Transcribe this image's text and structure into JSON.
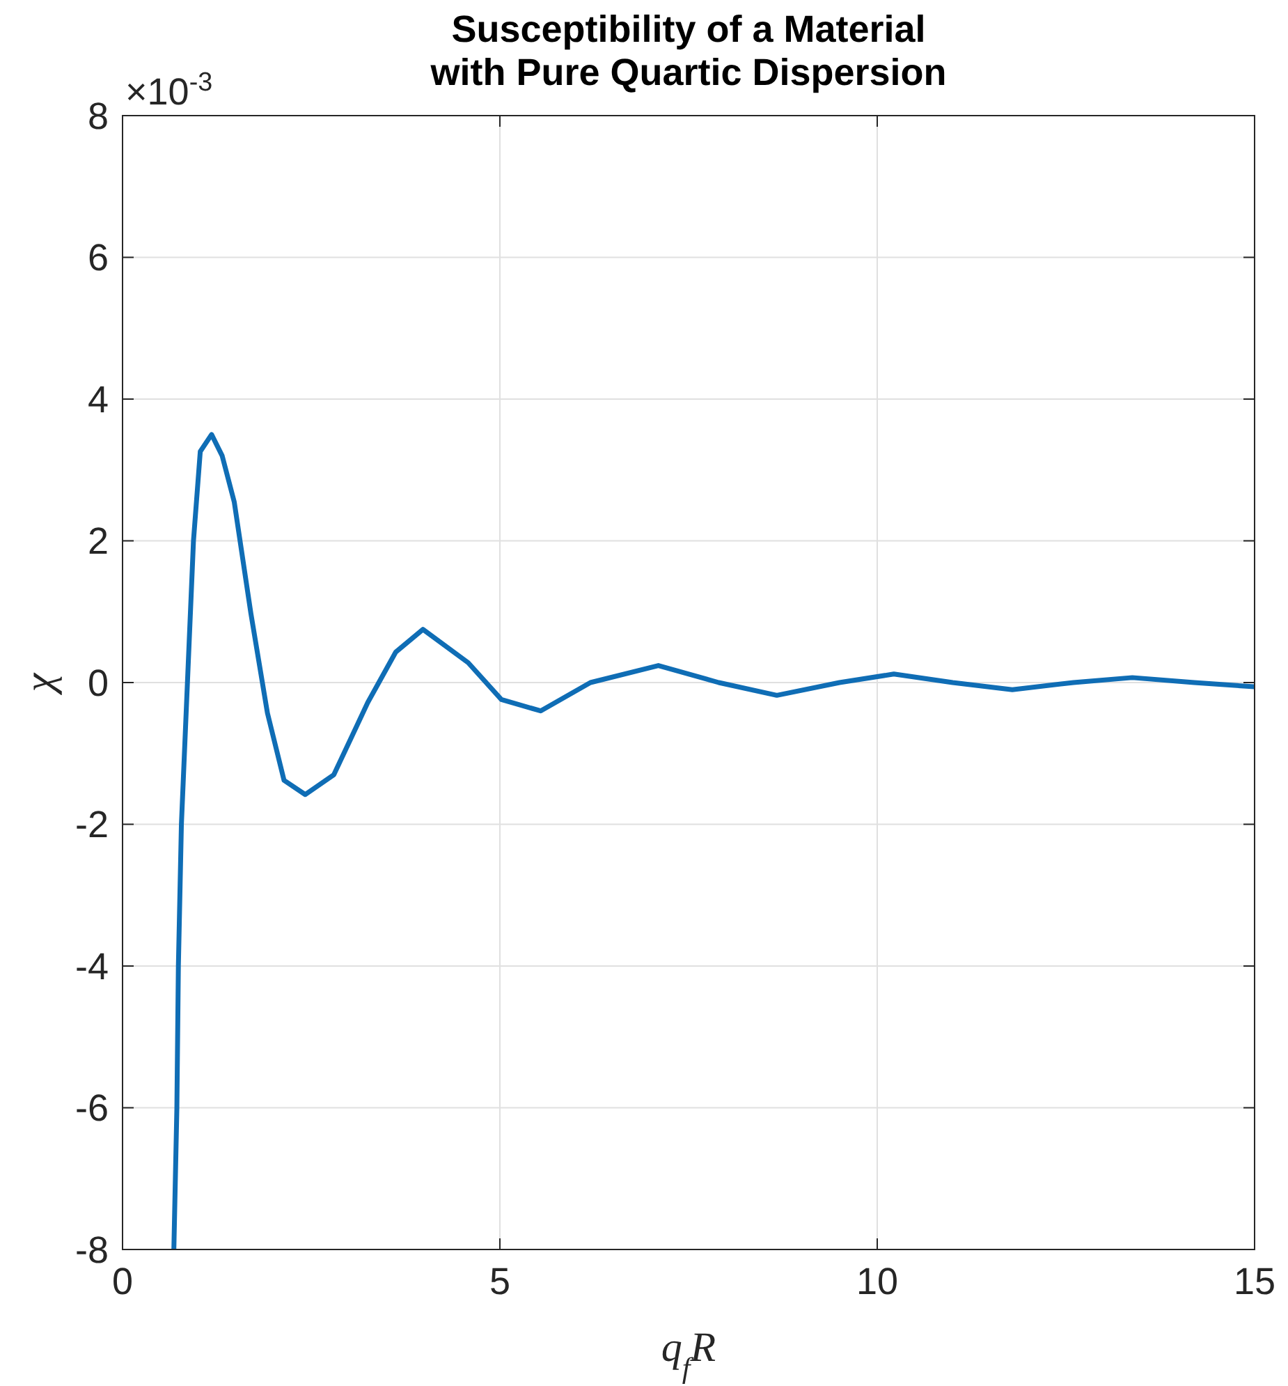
{
  "chart_data": {
    "type": "line",
    "title": "Susceptibility of a Material\nwith Pure Quartic Dispersion",
    "xlabel": "q$_{f}$R",
    "ylabel": "χ",
    "annotations": [
      "×10$^{-3}$"
    ],
    "xlim": [
      0,
      15
    ],
    "xticks": [
      0,
      5,
      10,
      15
    ],
    "ylim": [
      -8,
      8
    ],
    "yticks": [
      -8,
      -6,
      -4,
      -2,
      0,
      2,
      4,
      6,
      8
    ],
    "grid": true,
    "line_style": "solid",
    "marker": "none",
    "series": [
      {
        "color": "#0f6db5",
        "x": [
          0.68,
          0.72,
          0.74,
          0.78,
          0.86,
          0.94,
          1.03,
          1.18,
          1.32,
          1.48,
          1.7,
          1.92,
          2.14,
          2.42,
          2.8,
          3.25,
          3.62,
          3.98,
          4.58,
          5.02,
          5.54,
          6.2,
          7.1,
          7.9,
          8.67,
          9.5,
          10.22,
          11.0,
          11.79,
          12.6,
          13.38,
          14.2,
          15
        ],
        "values": [
          -8,
          -6,
          -4,
          -2,
          0,
          2,
          3.26,
          3.5,
          3.2,
          2.55,
          0.98,
          -0.43,
          -1.38,
          -1.58,
          -1.3,
          -0.28,
          0.43,
          0.75,
          0.28,
          -0.24,
          -0.4,
          0,
          0.24,
          0,
          -0.18,
          0,
          0.12,
          0,
          -0.1,
          0,
          0.07,
          0,
          -0.06
        ]
      }
    ]
  }
}
